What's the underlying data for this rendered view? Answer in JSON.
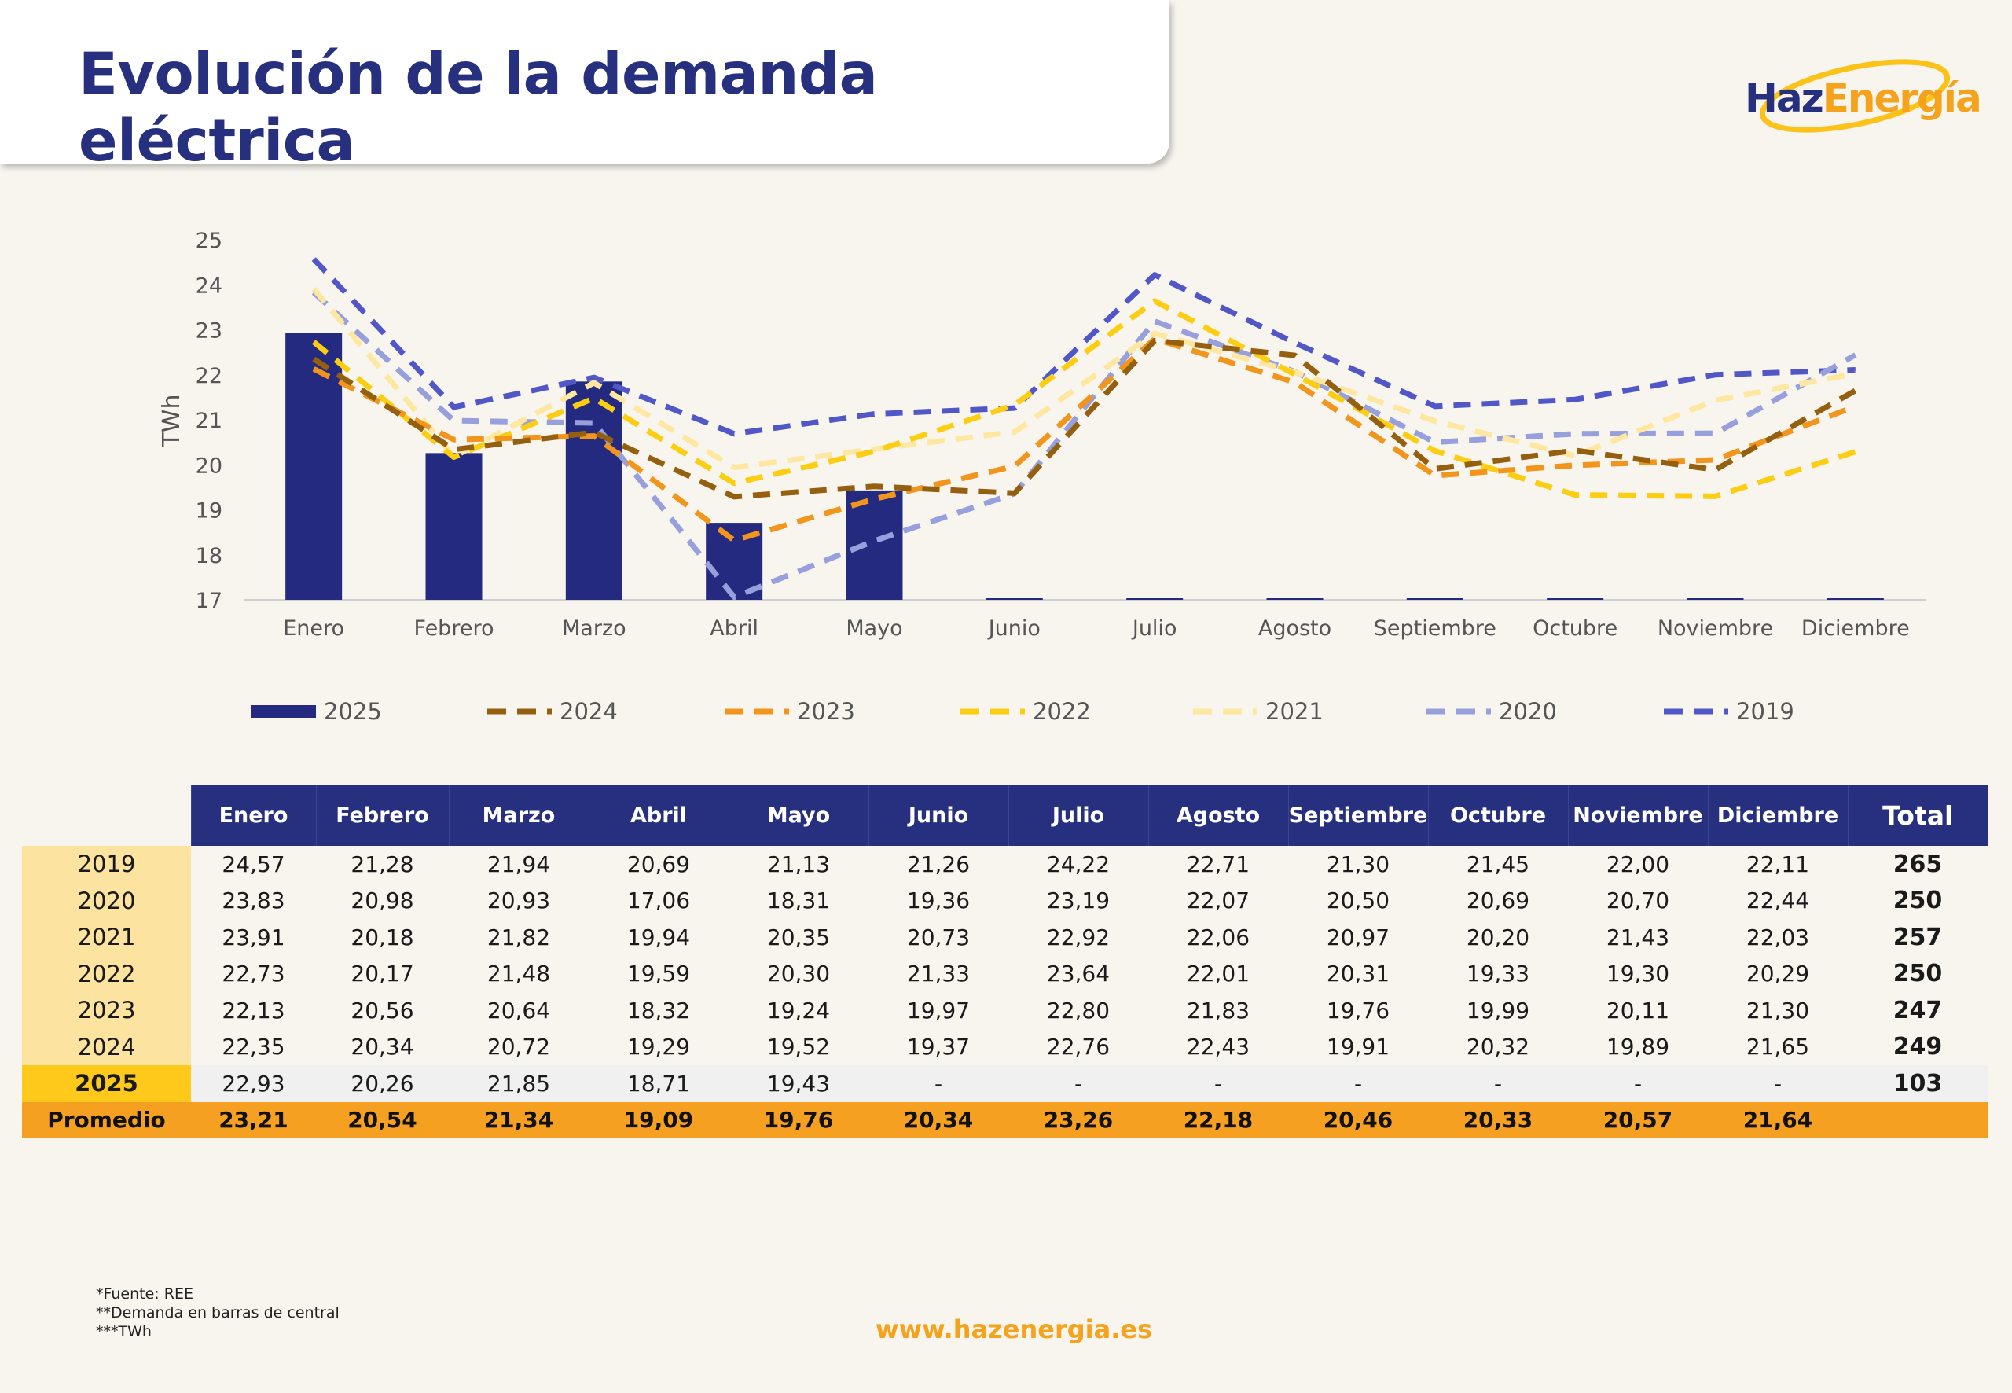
{
  "title": "Evolución de la demanda eléctrica",
  "logo": {
    "part1": "Haz",
    "part2": "Energía"
  },
  "colors": {
    "navy": "#27307e",
    "orange": "#f5a021",
    "gold": "#fec91b",
    "background": "#f8f5ef"
  },
  "chart_data": {
    "type": "bar",
    "ylabel": "TWh",
    "ylim": [
      17,
      25
    ],
    "yticks": [
      "17",
      "18",
      "19",
      "20",
      "21",
      "22",
      "23",
      "24",
      "25"
    ],
    "categories": [
      "Enero",
      "Febrero",
      "Marzo",
      "Abril",
      "Mayo",
      "Junio",
      "Julio",
      "Agosto",
      "Septiembre",
      "Octubre",
      "Noviembre",
      "Diciembre"
    ],
    "legend_position": "bottom",
    "grid": false,
    "series": [
      {
        "name": "2025",
        "style": "bar",
        "color": "#232a7f",
        "values": [
          22.93,
          20.26,
          21.85,
          18.71,
          19.43,
          null,
          null,
          null,
          null,
          null,
          null,
          null
        ]
      },
      {
        "name": "2024",
        "style": "dashed-line",
        "color": "#94600f",
        "values": [
          22.35,
          20.34,
          20.72,
          19.29,
          19.52,
          19.37,
          22.76,
          22.43,
          19.91,
          20.32,
          19.89,
          21.65
        ]
      },
      {
        "name": "2023",
        "style": "dashed-line",
        "color": "#f2951d",
        "values": [
          22.13,
          20.56,
          20.64,
          18.32,
          19.24,
          19.97,
          22.8,
          21.83,
          19.76,
          19.99,
          20.11,
          21.3
        ]
      },
      {
        "name": "2022",
        "style": "dashed-line",
        "color": "#fbcd13",
        "values": [
          22.73,
          20.17,
          21.48,
          19.59,
          20.3,
          21.33,
          23.64,
          22.01,
          20.31,
          19.33,
          19.3,
          20.29
        ]
      },
      {
        "name": "2021",
        "style": "dashed-line",
        "color": "#fde7a1",
        "values": [
          23.91,
          20.18,
          21.82,
          19.94,
          20.35,
          20.73,
          22.92,
          22.06,
          20.97,
          20.2,
          21.43,
          22.03
        ]
      },
      {
        "name": "2020",
        "style": "dashed-line",
        "color": "#979fdc",
        "values": [
          23.83,
          20.98,
          20.93,
          17.06,
          18.31,
          19.36,
          23.19,
          22.07,
          20.5,
          20.69,
          20.7,
          22.44
        ]
      },
      {
        "name": "2019",
        "style": "dashed-line",
        "color": "#5257c8",
        "values": [
          24.57,
          21.28,
          21.94,
          20.69,
          21.13,
          21.26,
          24.22,
          22.71,
          21.3,
          21.45,
          22.0,
          22.11
        ]
      }
    ]
  },
  "table": {
    "months": [
      "Enero",
      "Febrero",
      "Marzo",
      "Abril",
      "Mayo",
      "Junio",
      "Julio",
      "Agosto",
      "Septiembre",
      "Octubre",
      "Noviembre",
      "Diciembre"
    ],
    "total_header": "Total",
    "rows": [
      {
        "year": "2019",
        "values": [
          "24,57",
          "21,28",
          "21,94",
          "20,69",
          "21,13",
          "21,26",
          "24,22",
          "22,71",
          "21,30",
          "21,45",
          "22,00",
          "22,11"
        ],
        "total": "265"
      },
      {
        "year": "2020",
        "values": [
          "23,83",
          "20,98",
          "20,93",
          "17,06",
          "18,31",
          "19,36",
          "23,19",
          "22,07",
          "20,50",
          "20,69",
          "20,70",
          "22,44"
        ],
        "total": "250"
      },
      {
        "year": "2021",
        "values": [
          "23,91",
          "20,18",
          "21,82",
          "19,94",
          "20,35",
          "20,73",
          "22,92",
          "22,06",
          "20,97",
          "20,20",
          "21,43",
          "22,03"
        ],
        "total": "257"
      },
      {
        "year": "2022",
        "values": [
          "22,73",
          "20,17",
          "21,48",
          "19,59",
          "20,30",
          "21,33",
          "23,64",
          "22,01",
          "20,31",
          "19,33",
          "19,30",
          "20,29"
        ],
        "total": "250"
      },
      {
        "year": "2023",
        "values": [
          "22,13",
          "20,56",
          "20,64",
          "18,32",
          "19,24",
          "19,97",
          "22,80",
          "21,83",
          "19,76",
          "19,99",
          "20,11",
          "21,30"
        ],
        "total": "247"
      },
      {
        "year": "2024",
        "values": [
          "22,35",
          "20,34",
          "20,72",
          "19,29",
          "19,52",
          "19,37",
          "22,76",
          "22,43",
          "19,91",
          "20,32",
          "19,89",
          "21,65"
        ],
        "total": "249"
      },
      {
        "year": "2025",
        "values": [
          "22,93",
          "20,26",
          "21,85",
          "18,71",
          "19,43",
          "-",
          "-",
          "-",
          "-",
          "-",
          "-",
          "-"
        ],
        "total": "103",
        "highlight": true
      }
    ],
    "average": {
      "label": "Promedio",
      "values": [
        "23,21",
        "20,54",
        "21,34",
        "19,09",
        "19,76",
        "20,34",
        "23,26",
        "22,18",
        "20,46",
        "20,33",
        "20,57",
        "21,64"
      ],
      "total": ""
    }
  },
  "footnotes": [
    "*Fuente: REE",
    "**Demanda en barras de central",
    "***TWh"
  ],
  "website": "www.hazenergia.es"
}
